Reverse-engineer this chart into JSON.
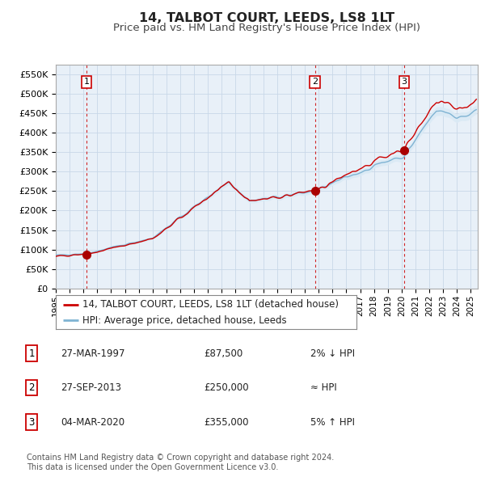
{
  "title": "14, TALBOT COURT, LEEDS, LS8 1LT",
  "subtitle": "Price paid vs. HM Land Registry's House Price Index (HPI)",
  "title_fontsize": 11.5,
  "subtitle_fontsize": 9.5,
  "ylabel_ticks": [
    "£0",
    "£50K",
    "£100K",
    "£150K",
    "£200K",
    "£250K",
    "£300K",
    "£350K",
    "£400K",
    "£450K",
    "£500K",
    "£550K"
  ],
  "ytick_vals": [
    0,
    50000,
    100000,
    150000,
    200000,
    250000,
    300000,
    350000,
    400000,
    450000,
    500000,
    550000
  ],
  "ylim": [
    0,
    575000
  ],
  "xlim_start": 1995.0,
  "xlim_end": 2025.5,
  "transactions": [
    {
      "label": "1",
      "date": 1997.23,
      "price": 87500
    },
    {
      "label": "2",
      "date": 2013.74,
      "price": 250000
    },
    {
      "label": "3",
      "date": 2020.17,
      "price": 355000
    }
  ],
  "transaction_table": [
    {
      "num": "1",
      "date": "27-MAR-1997",
      "price": "£87,500",
      "rel": "2% ↓ HPI"
    },
    {
      "num": "2",
      "date": "27-SEP-2013",
      "price": "£250,000",
      "rel": "≈ HPI"
    },
    {
      "num": "3",
      "date": "04-MAR-2020",
      "price": "£355,000",
      "rel": "5% ↑ HPI"
    }
  ],
  "legend_line1": "14, TALBOT COURT, LEEDS, LS8 1LT (detached house)",
  "legend_line2": "HPI: Average price, detached house, Leeds",
  "price_line_color": "#cc0000",
  "hpi_line_color": "#7fb3d3",
  "hpi_fill_color": "#daeaf5",
  "transaction_marker_color": "#aa0000",
  "transaction_label_border": "#cc0000",
  "grid_color": "#c8d8e8",
  "vline_color": "#cc0000",
  "chart_bg": "#e8f0f8",
  "footnote": "Contains HM Land Registry data © Crown copyright and database right 2024.\nThis data is licensed under the Open Government Licence v3.0."
}
